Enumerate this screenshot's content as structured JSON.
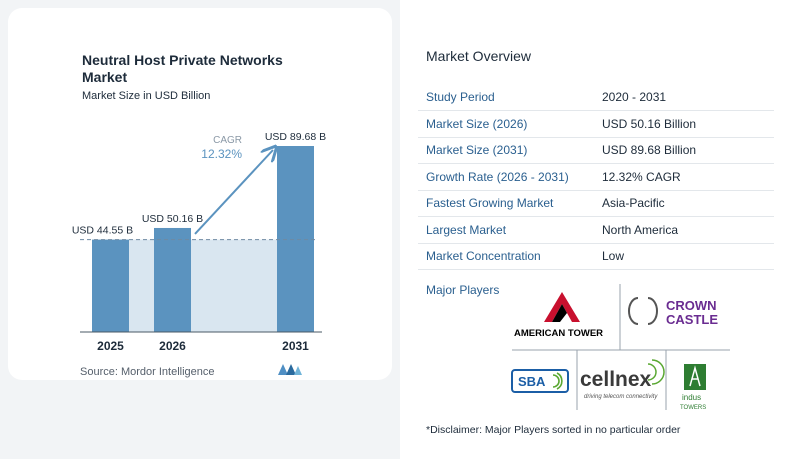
{
  "chart_title": "Neutral Host Private Networks Market",
  "chart_subtitle": "Market Size in USD Billion",
  "source": "Source: Mordor Intelligence",
  "colors": {
    "bar": "#5b93bf",
    "bar_light": "#d9e6f0",
    "arrow": "#5b93bf",
    "label_blue": "#2a5f8f"
  },
  "chart_data": {
    "type": "bar",
    "categories": [
      "2025",
      "2026",
      "2031"
    ],
    "values": [
      44.55,
      50.16,
      89.68
    ],
    "value_labels": [
      "USD 44.55 B",
      "USD 50.16 B",
      "USD 89.68 B"
    ],
    "cagr_label": "CAGR",
    "cagr_value": "12.32%",
    "reference_line": 44.55,
    "ylim": [
      0,
      100
    ]
  },
  "overview": {
    "title": "Market Overview",
    "rows": [
      {
        "label": "Study Period",
        "value": "2020 - 2031"
      },
      {
        "label": "Market Size (2026)",
        "value": "USD 50.16 Billion"
      },
      {
        "label": "Market Size (2031)",
        "value": "USD 89.68 Billion"
      },
      {
        "label": "Growth Rate (2026 - 2031)",
        "value": "12.32% CAGR"
      },
      {
        "label": "Fastest Growing Market",
        "value": "Asia-Pacific"
      },
      {
        "label": "Largest Market",
        "value": "North America"
      },
      {
        "label": "Market Concentration",
        "value": "Low"
      }
    ],
    "players_label": "Major Players",
    "players": {
      "american_tower": "AMERICAN TOWER",
      "crown_castle_1": "CROWN",
      "crown_castle_2": "CASTLE",
      "sba": "SBA",
      "cellnex": "cellnex",
      "cellnex_tagline": "driving telecom connectivity",
      "indus_1": "indus",
      "indus_2": "TOWERS"
    },
    "disclaimer": "*Disclaimer: Major Players sorted in no particular order"
  }
}
